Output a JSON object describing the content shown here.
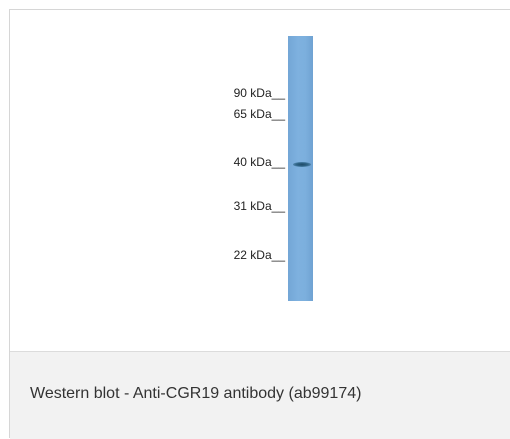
{
  "blot": {
    "markers": [
      {
        "label": "90 kDa__"
      },
      {
        "label": "65 kDa__"
      },
      {
        "label": "40 kDa__"
      },
      {
        "label": "31 kDa__"
      },
      {
        "label": "22 kDa__"
      }
    ],
    "lane_color": "#7aaddc",
    "band_color": "#2a5a7a"
  },
  "caption": {
    "text": "Western blot - Anti-CGR19 antibody (ab99174)"
  }
}
